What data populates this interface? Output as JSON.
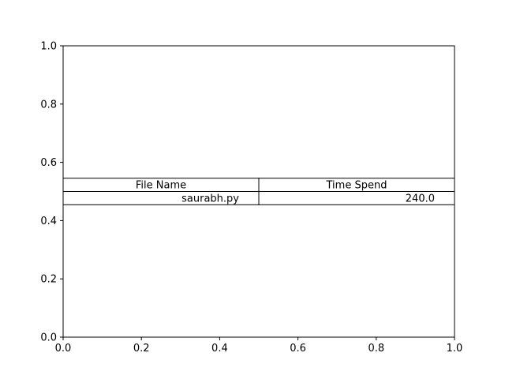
{
  "chart_data": {
    "type": "table",
    "title": "",
    "xlabel": "",
    "ylabel": "",
    "xlim": [
      0,
      1
    ],
    "ylim": [
      0,
      1
    ],
    "xticks": [
      "0.0",
      "0.2",
      "0.4",
      "0.6",
      "0.8",
      "1.0"
    ],
    "yticks": [
      "0.0",
      "0.2",
      "0.4",
      "0.6",
      "0.8",
      "1.0"
    ],
    "grid": false,
    "table": {
      "columns": [
        "File Name",
        "Time Spend"
      ],
      "rows": [
        [
          "saurabh.py",
          "240.0"
        ]
      ]
    }
  }
}
